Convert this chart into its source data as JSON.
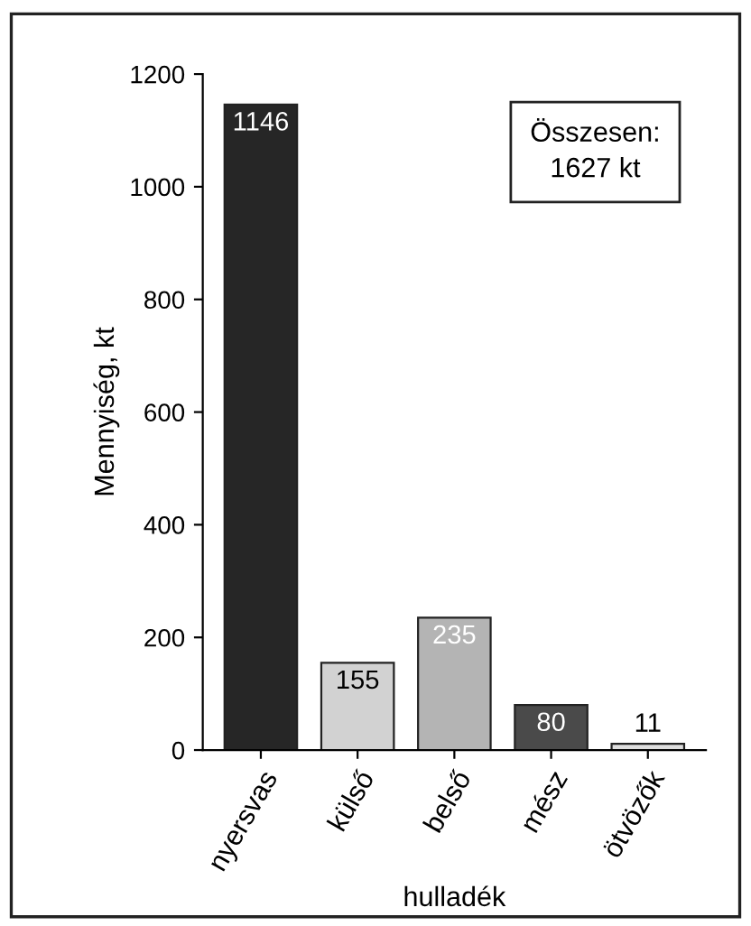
{
  "chart_data": {
    "type": "bar",
    "xlabel": "hulladék",
    "ylabel": "Mennyiség, kt",
    "categories": [
      "nyersvas",
      "külső",
      "belső",
      "mész",
      "ötvözők"
    ],
    "values": [
      1146,
      155,
      235,
      80,
      11
    ],
    "colors": [
      "#262626",
      "#d2d2d2",
      "#b4b4b4",
      "#4a4a4a",
      "#dedede"
    ],
    "ylim": [
      0,
      1200
    ],
    "yticks": [
      0,
      200,
      400,
      600,
      800,
      1000,
      1200
    ],
    "data_labels": true,
    "grid": false,
    "annotations": [
      "Összesen:\n1627 kt"
    ]
  }
}
